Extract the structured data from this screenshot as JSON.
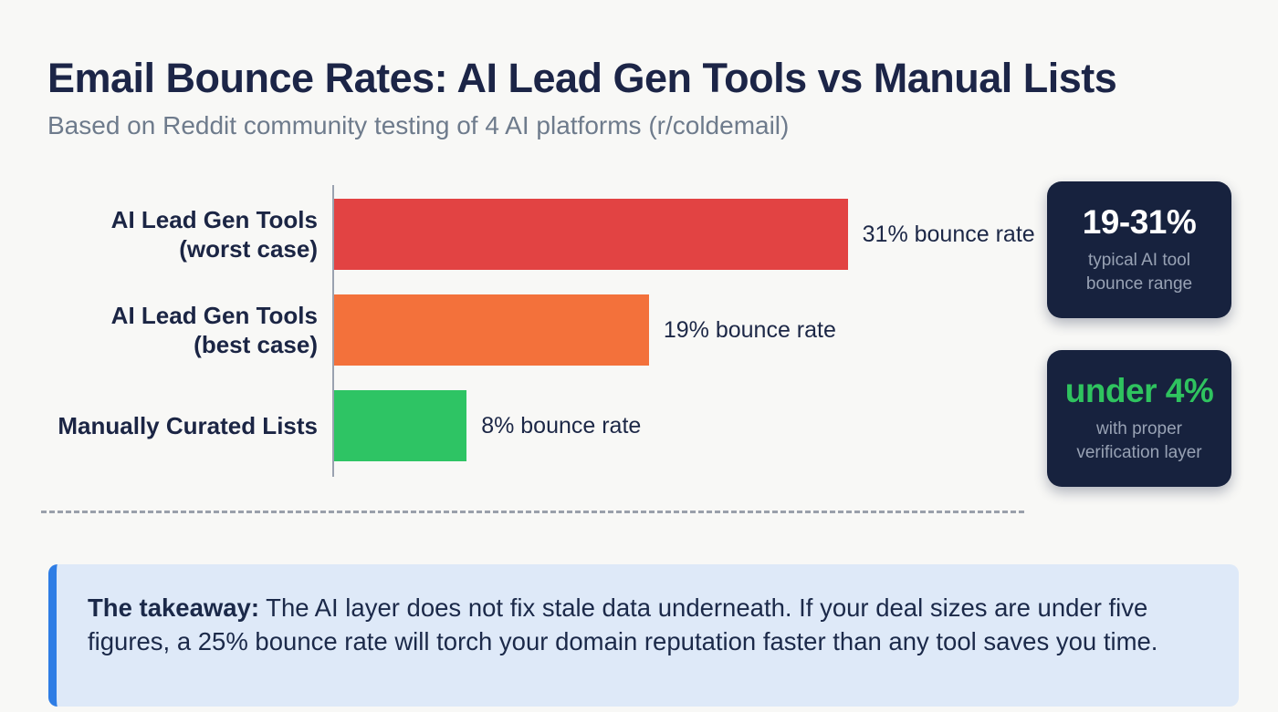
{
  "header": {
    "title": "Email Bounce Rates: AI Lead Gen Tools vs Manual Lists",
    "subtitle": "Based on Reddit community testing of 4 AI platforms (r/coldemail)"
  },
  "chart_data": {
    "type": "bar",
    "orientation": "horizontal",
    "title": "Email Bounce Rates: AI Lead Gen Tools vs Manual Lists",
    "categories": [
      "AI Lead Gen Tools (worst case)",
      "AI Lead Gen Tools (best case)",
      "Manually Curated Lists"
    ],
    "values": [
      31,
      19,
      8
    ],
    "unit": "percent",
    "xlim": [
      0,
      40
    ],
    "grid": false,
    "legend": false,
    "rows": [
      {
        "label_line1": "AI Lead Gen Tools",
        "label_line2": "(worst case)",
        "value": 31,
        "value_label": "31% bounce rate",
        "color": "#e24343"
      },
      {
        "label_line1": "AI Lead Gen Tools",
        "label_line2": "(best case)",
        "value": 19,
        "value_label": "19% bounce rate",
        "color": "#f3713b"
      },
      {
        "label_line1": "Manually Curated Lists",
        "label_line2": "",
        "value": 8,
        "value_label": "8% bounce rate",
        "color": "#2ec464"
      }
    ]
  },
  "badges": [
    {
      "value": "19-31%",
      "value_color": "#ffffff",
      "line1": "typical AI tool",
      "line2": "bounce range"
    },
    {
      "value": "under 4%",
      "value_color": "#2fc35f",
      "line1": "with proper",
      "line2": "verification layer"
    }
  ],
  "takeaway": {
    "label": "The takeaway:",
    "text": "The AI layer does not fix stale data underneath. If your deal sizes are under five figures, a 25% bounce rate will torch your domain reputation faster than any tool saves you time."
  },
  "colors": {
    "background": "#f8f8f6",
    "title_text": "#1c2547",
    "subtitle_text": "#6e7b8c",
    "bar_worst": "#e24343",
    "bar_best": "#f3713b",
    "bar_manual": "#2ec464",
    "badge_background": "#17223e",
    "badge_caption": "#98a2b4",
    "badge_green": "#2fc35f",
    "callout_background": "#dee9f8",
    "callout_accent": "#2e7de5"
  }
}
